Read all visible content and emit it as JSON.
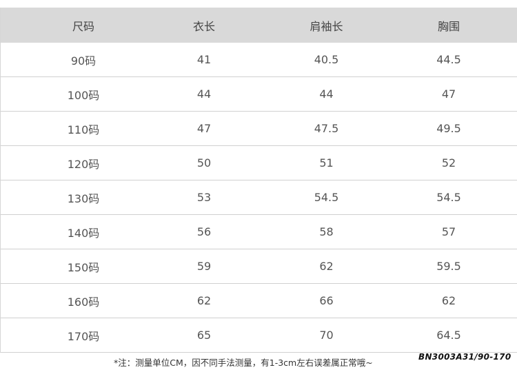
{
  "headers": [
    "尺码",
    "衣长",
    "肩袖长",
    "胸围"
  ],
  "rows": [
    [
      "90码",
      "41",
      "40.5",
      "44.5"
    ],
    [
      "100码",
      "44",
      "44",
      "47"
    ],
    [
      "110码",
      "47",
      "47.5",
      "49.5"
    ],
    [
      "120码",
      "50",
      "51",
      "52"
    ],
    [
      "130码",
      "53",
      "54.5",
      "54.5"
    ],
    [
      "140码",
      "56",
      "58",
      "57"
    ],
    [
      "150码",
      "59",
      "62",
      "59.5"
    ],
    [
      "160码",
      "62",
      "66",
      "62"
    ],
    [
      "170码",
      "65",
      "70",
      "64.5"
    ]
  ],
  "note": "*注：测量单位CM，因不同手法测量，有1-3cm左右误差属正常哦~",
  "product_code": "BN3003A31/90-170",
  "colors": {
    "header_bg": "#d9d9d9",
    "grid_line": "#d0d0d0"
  }
}
